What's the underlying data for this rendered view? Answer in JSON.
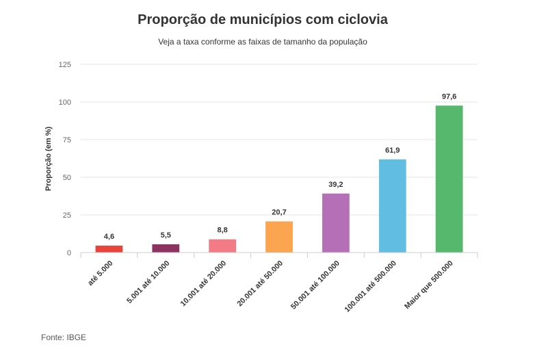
{
  "title": "Proporção de municípios com ciclovia",
  "subtitle": "Veja a taxa conforme as faixas de tamanho da população",
  "source": "Fonte: IBGE",
  "chart_data": {
    "type": "bar",
    "title": "Proporção de municípios com ciclovia",
    "subtitle": "Veja a taxa conforme as faixas de tamanho da população",
    "xlabel": "",
    "ylabel": "Proporção (em %)",
    "ylim": [
      0,
      125
    ],
    "yticks": [
      0,
      25,
      50,
      75,
      100,
      125
    ],
    "grid": true,
    "categories": [
      "até 5.000",
      "5.001 até 10.000",
      "10.001 até 20.000",
      "20.001 até 50.000",
      "50.001 até 100.000",
      "100.001 até 500.000",
      "Maior que 500.000"
    ],
    "values": [
      4.6,
      5.5,
      8.8,
      20.7,
      39.2,
      61.9,
      97.6
    ],
    "data_labels": [
      "4,6",
      "5,5",
      "8,8",
      "20,7",
      "39,2",
      "61,9",
      "97,6"
    ],
    "colors": [
      "#e8443a",
      "#8e3262",
      "#f27b85",
      "#fba550",
      "#b46fb7",
      "#62bde2",
      "#56b86d"
    ]
  }
}
